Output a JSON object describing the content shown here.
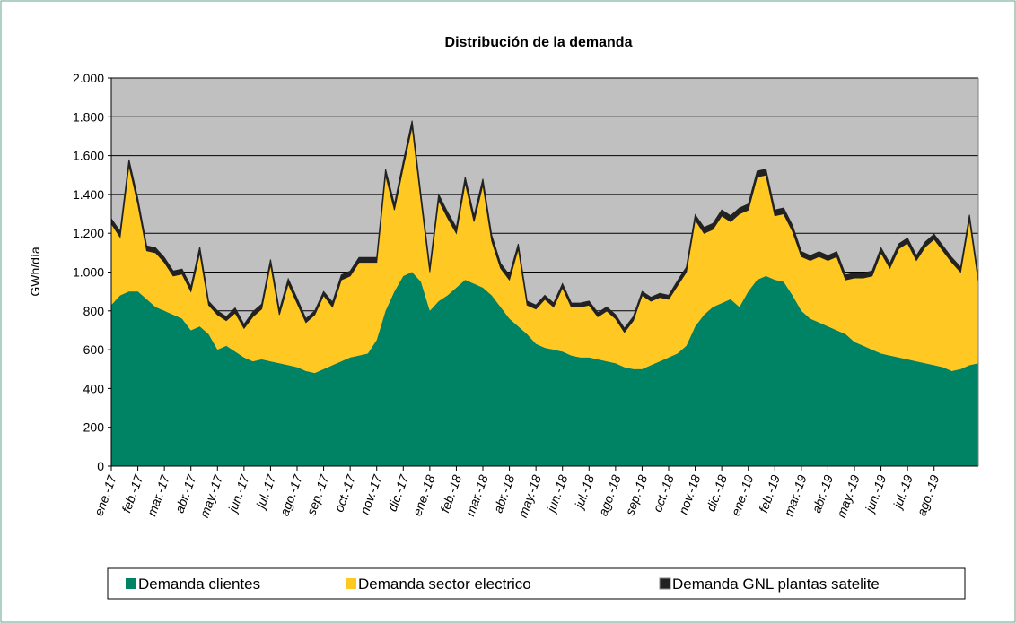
{
  "chart_data": {
    "type": "stacked_area",
    "title": "Distribución de la demanda",
    "ylabel": "GWh/día",
    "categories": [
      "ene.-17",
      null,
      null,
      "feb.-17",
      null,
      null,
      "mar.-17",
      null,
      null,
      "abr.-17",
      null,
      null,
      "may.-17",
      null,
      null,
      "jun.-17",
      null,
      null,
      "jul.-17",
      null,
      null,
      "ago.-17",
      null,
      null,
      "sep.-17",
      null,
      null,
      "oct.-17",
      null,
      null,
      "nov.-17",
      null,
      null,
      "dic.-17",
      null,
      null,
      "ene.-18",
      null,
      null,
      "feb.-18",
      null,
      null,
      "mar.-18",
      null,
      null,
      "abr.-18",
      null,
      null,
      "may.-18",
      null,
      null,
      "jun.-18",
      null,
      null,
      "jul.-18",
      null,
      null,
      "ago.-18",
      null,
      null,
      "sep.-18",
      null,
      null,
      "oct.-18",
      null,
      null,
      "nov.-18",
      null,
      null,
      "dic.-18",
      null,
      null,
      "ene.-19",
      null,
      null,
      "feb.-19",
      null,
      null,
      "mar.-19",
      null,
      null,
      "abr.-19",
      null,
      null,
      "may.-19",
      null,
      null,
      "jun.-19",
      null,
      null,
      "jul.-19",
      null,
      null,
      "ago.-19",
      null,
      null,
      null,
      null,
      null
    ],
    "series": [
      {
        "name": "Demanda clientes",
        "color": "#008264",
        "values": [
          830,
          880,
          900,
          900,
          860,
          820,
          800,
          780,
          760,
          700,
          720,
          680,
          600,
          620,
          590,
          560,
          540,
          550,
          540,
          530,
          520,
          510,
          490,
          480,
          500,
          520,
          540,
          560,
          570,
          580,
          650,
          800,
          900,
          980,
          1000,
          950,
          800,
          850,
          880,
          920,
          960,
          940,
          920,
          880,
          820,
          760,
          720,
          680,
          630,
          610,
          600,
          590,
          570,
          560,
          560,
          550,
          540,
          530,
          510,
          500,
          500,
          520,
          540,
          560,
          580,
          620,
          720,
          780,
          820,
          840,
          860,
          820,
          900,
          960,
          980,
          960,
          950,
          880,
          800,
          760,
          740,
          720,
          700,
          680,
          640,
          620,
          600,
          580,
          570,
          560,
          550,
          540,
          530,
          520,
          510,
          490,
          500,
          520,
          530
        ]
      },
      {
        "name": "Demanda sector electrico",
        "color": "#ffc822",
        "values": [
          420,
          300,
          650,
          450,
          250,
          280,
          250,
          200,
          230,
          200,
          380,
          150,
          180,
          130,
          200,
          150,
          230,
          260,
          500,
          250,
          420,
          330,
          250,
          300,
          380,
          300,
          420,
          420,
          480,
          470,
          400,
          700,
          420,
          560,
          750,
          420,
          200,
          520,
          400,
          280,
          500,
          320,
          530,
          280,
          200,
          200,
          400,
          150,
          180,
          250,
          220,
          330,
          250,
          260,
          270,
          220,
          260,
          230,
          180,
          250,
          380,
          330,
          330,
          300,
          350,
          380,
          550,
          420,
          400,
          450,
          400,
          480,
          420,
          530,
          520,
          330,
          350,
          330,
          280,
          300,
          340,
          340,
          380,
          280,
          330,
          350,
          380,
          520,
          450,
          560,
          600,
          520,
          600,
          650,
          600,
          560,
          500,
          750,
          420
        ]
      },
      {
        "name": "Demanda GNL plantas satelite",
        "color": "#222222",
        "values": [
          25,
          30,
          30,
          30,
          25,
          25,
          25,
          25,
          25,
          25,
          30,
          20,
          20,
          20,
          25,
          20,
          25,
          25,
          25,
          25,
          25,
          25,
          20,
          20,
          20,
          25,
          25,
          25,
          25,
          25,
          25,
          30,
          30,
          30,
          30,
          30,
          25,
          30,
          30,
          30,
          30,
          30,
          30,
          30,
          25,
          25,
          25,
          20,
          20,
          20,
          20,
          20,
          20,
          20,
          20,
          20,
          20,
          20,
          20,
          20,
          20,
          20,
          20,
          20,
          25,
          25,
          25,
          30,
          30,
          30,
          30,
          30,
          30,
          30,
          30,
          30,
          30,
          30,
          25,
          25,
          25,
          25,
          25,
          25,
          25,
          25,
          25,
          25,
          25,
          25,
          25,
          25,
          25,
          25,
          25,
          25,
          25,
          25,
          25
        ]
      }
    ],
    "ylim": [
      0,
      2000
    ],
    "yticks": [
      0,
      200,
      400,
      600,
      800,
      {
        "value": 1000,
        "label": "1.000"
      },
      {
        "value": 1200,
        "label": "1.200"
      },
      {
        "value": 1400,
        "label": "1.400"
      },
      {
        "value": 1600,
        "label": "1.600"
      },
      {
        "value": 1800,
        "label": "1.800"
      },
      {
        "value": 2000,
        "label": "2.000"
      }
    ],
    "grid": true,
    "legend": "bottom"
  }
}
